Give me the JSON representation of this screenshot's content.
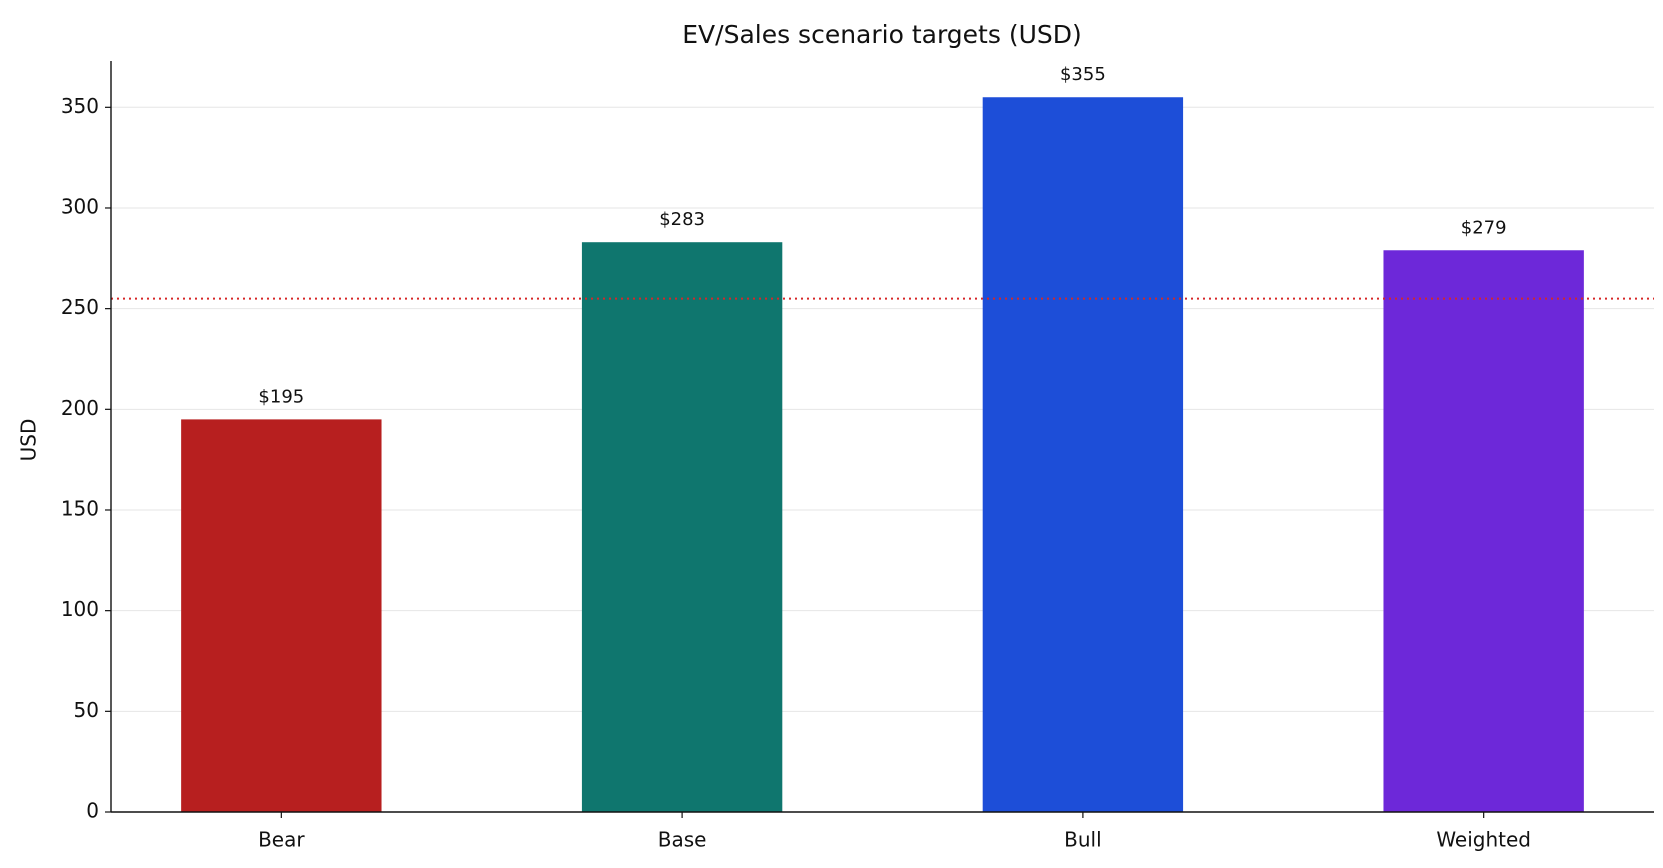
{
  "chart_data": {
    "type": "bar",
    "title": "EV/Sales scenario targets (USD)",
    "y_label": "USD",
    "categories": [
      "Bear",
      "Base",
      "Bull",
      "Weighted"
    ],
    "values": [
      195,
      283,
      355,
      279
    ],
    "value_labels": [
      "$195",
      "$283",
      "$355",
      "$279"
    ],
    "colors": [
      "#b71f1f",
      "#0f766e",
      "#1d4ed8",
      "#6d28d9"
    ],
    "reference_line": {
      "value": 255,
      "color": "#d62728"
    },
    "ylim": [
      0,
      373
    ],
    "yticks": [
      0,
      50,
      100,
      150,
      200,
      250,
      300,
      350
    ],
    "grid": true
  }
}
